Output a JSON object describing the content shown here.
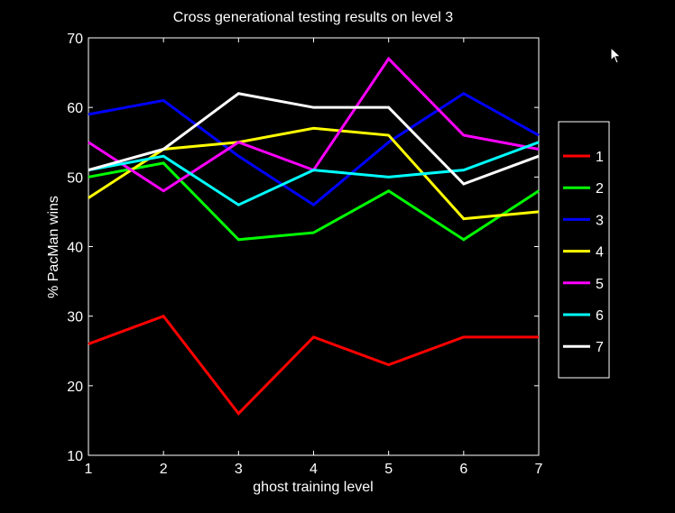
{
  "chart_data": {
    "type": "line",
    "title": "Cross generational testing results on level 3",
    "xlabel": "ghost training level",
    "ylabel": "% PacMan wins",
    "x": [
      1,
      2,
      3,
      4,
      5,
      6,
      7
    ],
    "xlim": [
      1,
      7
    ],
    "ylim": [
      10,
      70
    ],
    "xticks": [
      "1",
      "2",
      "3",
      "4",
      "5",
      "6",
      "7"
    ],
    "yticks": [
      "10",
      "20",
      "30",
      "40",
      "50",
      "60",
      "70"
    ],
    "ytick_values": [
      10,
      20,
      30,
      40,
      50,
      60,
      70
    ],
    "grid": false,
    "legend_position": "right",
    "series": [
      {
        "name": "1",
        "color": "#ff0000",
        "values": [
          26,
          30,
          16,
          27,
          23,
          27,
          27
        ]
      },
      {
        "name": "2",
        "color": "#00ff00",
        "values": [
          50,
          52,
          41,
          42,
          48,
          41,
          48
        ]
      },
      {
        "name": "3",
        "color": "#0000ff",
        "values": [
          59,
          61,
          53,
          46,
          55,
          62,
          56
        ]
      },
      {
        "name": "4",
        "color": "#ffff00",
        "values": [
          47,
          54,
          55,
          57,
          56,
          44,
          45
        ]
      },
      {
        "name": "5",
        "color": "#ff00ff",
        "values": [
          55,
          48,
          55,
          51,
          67,
          56,
          54
        ]
      },
      {
        "name": "6",
        "color": "#00ffff",
        "values": [
          51,
          53,
          46,
          51,
          50,
          51,
          55
        ]
      },
      {
        "name": "7",
        "color": "#ffffff",
        "values": [
          51,
          54,
          62,
          60,
          60,
          49,
          53
        ]
      }
    ]
  }
}
